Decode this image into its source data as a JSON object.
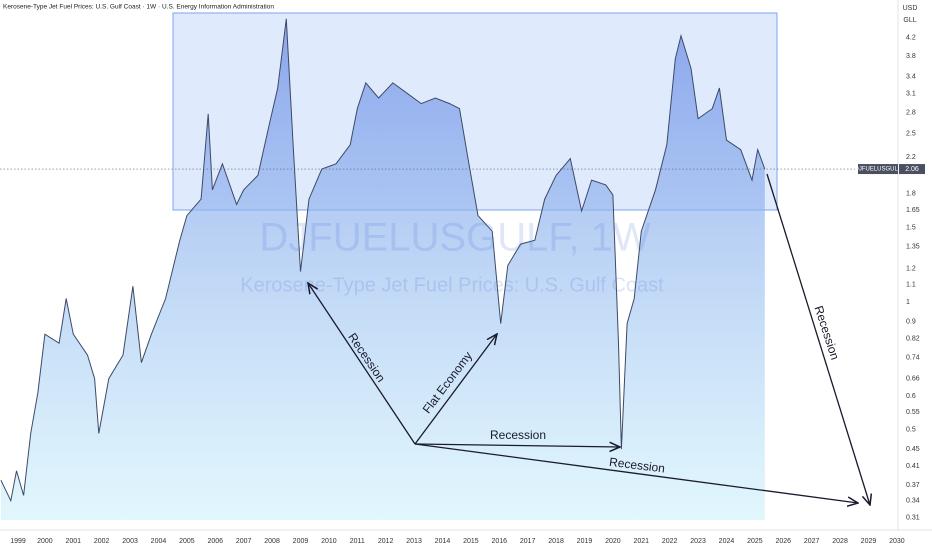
{
  "chart_data": {
    "type": "area",
    "title": "Kerosene-Type Jet Fuel Prices: U.S. Gulf Coast · 1W · U.S. Energy Information Administration",
    "symbol": "DJFUELUSGULF",
    "watermark": "DJFUELUSGULF, 1W",
    "watermark_subtitle": "Kerosene-Type Jet Fuel Prices: U.S. Gulf Coast",
    "currency": "USD",
    "unit": "GLL",
    "annotations": [
      "Recession",
      "Flat Economy",
      "Recession",
      "Recession",
      "Recession"
    ],
    "log_scale": true,
    "grid": false,
    "color": "#3d4a66",
    "x": [
      1998.45,
      1998.8,
      1999.0,
      1999.25,
      1999.5,
      1999.75,
      2000.0,
      2000.5,
      2000.75,
      2001.0,
      2001.5,
      2001.75,
      2001.9,
      2002.25,
      2002.75,
      2003.1,
      2003.4,
      2003.75,
      2004.25,
      2004.75,
      2005.0,
      2005.5,
      2005.75,
      2005.9,
      2006.25,
      2006.75,
      2007.0,
      2007.5,
      2007.9,
      2008.2,
      2008.5,
      2008.75,
      2009.0,
      2009.3,
      2009.75,
      2010.25,
      2010.75,
      2011.0,
      2011.3,
      2011.75,
      2012.25,
      2012.75,
      2013.25,
      2013.75,
      2014.25,
      2014.6,
      2014.9,
      2015.25,
      2015.75,
      2016.05,
      2016.3,
      2016.75,
      2017.25,
      2017.6,
      2018.0,
      2018.5,
      2018.9,
      2019.25,
      2019.75,
      2020.0,
      2020.2,
      2020.3,
      2020.5,
      2020.75,
      2021.0,
      2021.5,
      2021.9,
      2022.2,
      2022.4,
      2022.75,
      2023.0,
      2023.5,
      2023.75,
      2024.0,
      2024.5,
      2024.9,
      2025.1,
      2025.35
    ],
    "values": [
      0.38,
      0.34,
      0.4,
      0.35,
      0.49,
      0.61,
      0.84,
      0.8,
      1.02,
      0.84,
      0.75,
      0.66,
      0.49,
      0.66,
      0.75,
      1.09,
      0.72,
      0.84,
      1.02,
      1.4,
      1.6,
      1.75,
      2.78,
      1.84,
      2.12,
      1.7,
      1.84,
      1.99,
      2.62,
      3.2,
      4.66,
      2.29,
      1.18,
      1.75,
      2.06,
      2.12,
      2.35,
      2.86,
      3.29,
      3.03,
      3.29,
      3.11,
      2.94,
      3.03,
      2.94,
      2.86,
      2.18,
      1.6,
      1.47,
      0.89,
      1.22,
      1.37,
      1.4,
      1.75,
      1.99,
      2.18,
      1.64,
      1.94,
      1.89,
      1.79,
      0.8,
      0.45,
      0.89,
      1.02,
      1.47,
      1.84,
      2.35,
      3.75,
      4.25,
      3.56,
      2.71,
      2.86,
      3.2,
      2.41,
      2.29,
      1.94,
      2.29,
      2.06
    ],
    "xlim": [
      1998.42,
      2030.04
    ],
    "ylim": [
      0.29,
      5.16
    ],
    "xticks": [
      1999,
      2000,
      2001,
      2002,
      2003,
      2004,
      2005,
      2006,
      2007,
      2008,
      2009,
      2010,
      2011,
      2012,
      2013,
      2014,
      2015,
      2016,
      2017,
      2018,
      2019,
      2020,
      2021,
      2022,
      2023,
      2024,
      2025,
      2026,
      2027,
      2028,
      2029,
      2030
    ],
    "yticks": [
      4.2,
      3.8,
      3.4,
      3.1,
      2.8,
      2.5,
      2.2,
      1.8,
      1.65,
      1.5,
      1.35,
      1.2,
      1.1,
      1,
      0.9,
      0.82,
      0.74,
      0.66,
      0.6,
      0.55,
      0.5,
      0.45,
      0.41,
      0.37,
      0.34,
      0.31
    ]
  }
}
